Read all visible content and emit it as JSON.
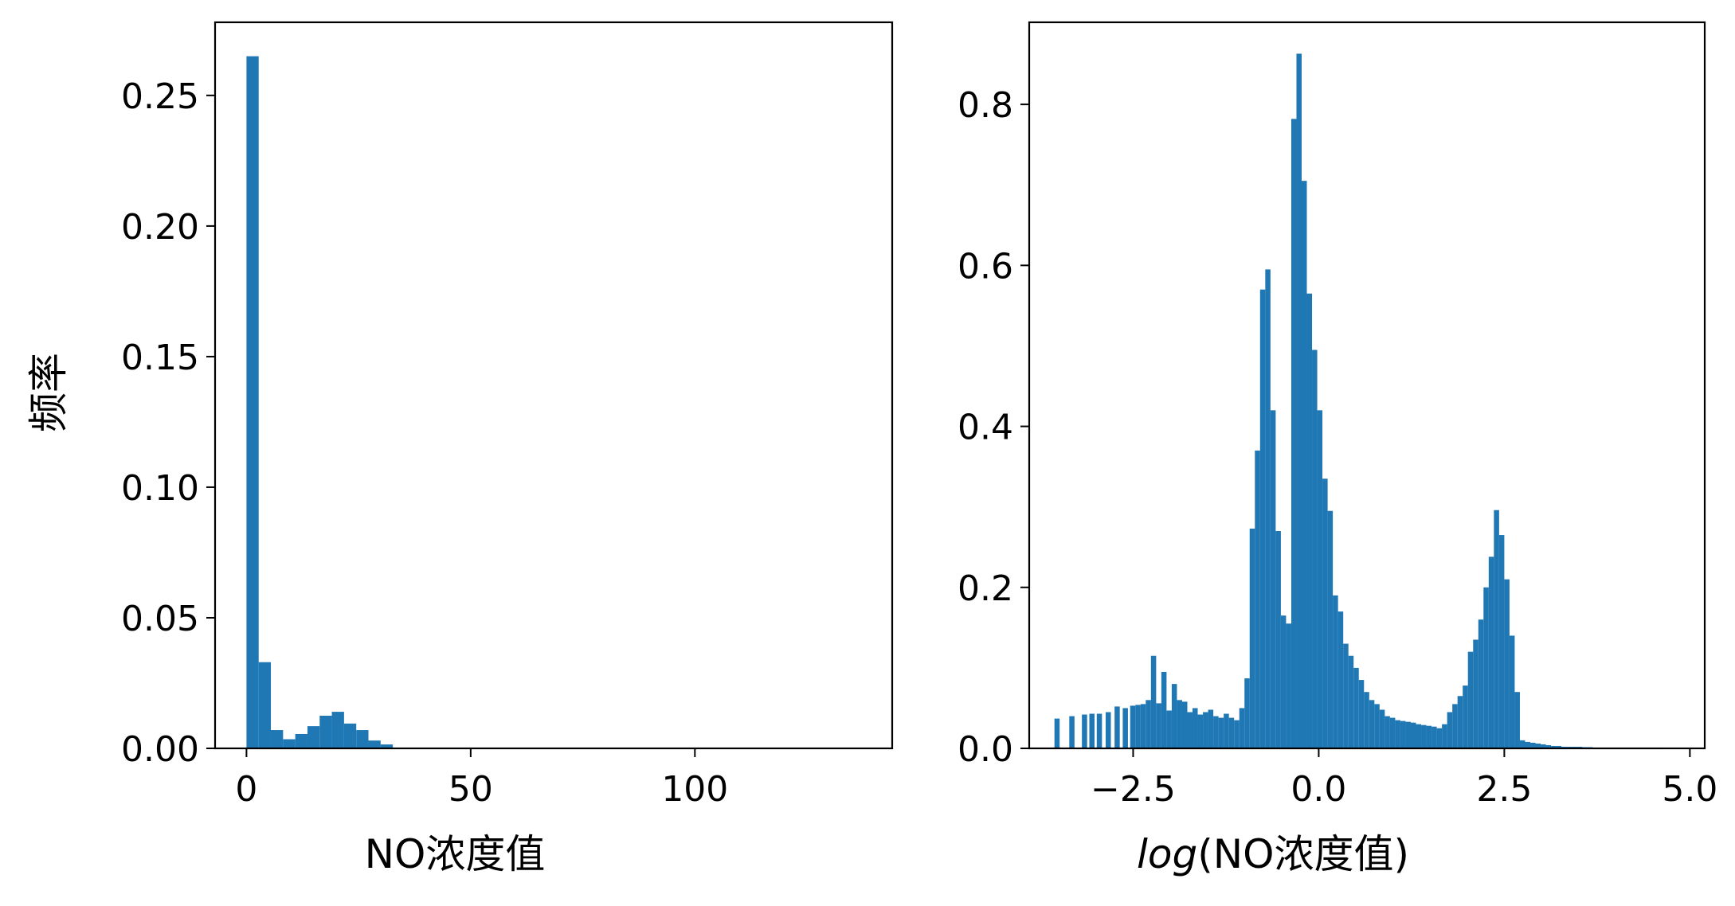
{
  "style": {
    "bar_color": "#1f77b4",
    "axes_color": "#000000",
    "background": "#ffffff"
  },
  "chart_data": [
    {
      "type": "bar",
      "title": "",
      "xlabel": "NO浓度值",
      "ylabel": "频率",
      "xlim": [
        -7,
        144
      ],
      "ylim": [
        0,
        0.278
      ],
      "xticks": [
        0,
        50,
        100
      ],
      "xtick_labels": [
        "0",
        "50",
        "100"
      ],
      "yticks": [
        0,
        0.05,
        0.1,
        0.15,
        0.2,
        0.25
      ],
      "ytick_labels": [
        "0.00",
        "0.05",
        "0.10",
        "0.15",
        "0.20",
        "0.25"
      ],
      "grid": false,
      "legend": "none",
      "bin_edges": [
        0,
        2.72,
        5.44,
        8.16,
        10.88,
        13.6,
        16.32,
        19.04,
        21.76,
        24.48,
        27.2,
        29.92,
        32.64
      ],
      "values": [
        0.265,
        0.033,
        0.007,
        0.0035,
        0.0055,
        0.0085,
        0.0125,
        0.014,
        0.0095,
        0.007,
        0.003,
        0.0015
      ]
    },
    {
      "type": "bar",
      "title": "",
      "xlabel_parts": [
        "log",
        "(NO浓度值)"
      ],
      "ylabel": "",
      "xlim": [
        -3.9,
        5.2
      ],
      "ylim": [
        0,
        0.902
      ],
      "xticks": [
        -2.5,
        0.0,
        2.5,
        5.0
      ],
      "xtick_labels": [
        "−2.5",
        "0.0",
        "2.5",
        "5.0"
      ],
      "yticks": [
        0,
        0.2,
        0.4,
        0.6,
        0.8
      ],
      "ytick_labels": [
        "0.0",
        "0.2",
        "0.4",
        "0.6",
        "0.8"
      ],
      "grid": false,
      "legend": "none",
      "bar_left": [
        -3.56,
        -3.36,
        -3.19,
        -3.09,
        -2.99,
        -2.87,
        -2.75,
        -2.64,
        -2.54,
        -2.47,
        -2.4,
        -2.33,
        -2.26,
        -2.19,
        -2.12,
        -2.05,
        -1.98,
        -1.91,
        -1.84,
        -1.77,
        -1.7,
        -1.63,
        -1.56,
        -1.49,
        -1.42,
        -1.35,
        -1.28,
        -1.21,
        -1.14,
        -1.07,
        -1.0,
        -0.93,
        -0.86,
        -0.79,
        -0.72,
        -0.65,
        -0.58,
        -0.51,
        -0.44,
        -0.37,
        -0.3,
        -0.23,
        -0.16,
        -0.09,
        -0.02,
        0.05,
        0.12,
        0.19,
        0.26,
        0.33,
        0.4,
        0.47,
        0.54,
        0.61,
        0.68,
        0.75,
        0.82,
        0.89,
        0.96,
        1.03,
        1.1,
        1.17,
        1.24,
        1.31,
        1.38,
        1.45,
        1.52,
        1.59,
        1.66,
        1.73,
        1.8,
        1.87,
        1.94,
        2.01,
        2.08,
        2.15,
        2.22,
        2.29,
        2.36,
        2.43,
        2.5,
        2.57,
        2.64,
        2.71,
        2.78,
        2.85,
        2.92,
        2.99,
        3.06,
        3.13,
        3.2,
        3.27,
        3.34,
        3.41,
        3.48,
        3.55,
        3.62,
        3.69,
        3.76,
        3.83,
        3.9,
        3.97,
        4.04,
        4.11,
        4.18,
        4.25,
        4.32,
        4.39,
        4.46,
        4.53
      ],
      "bar_width": [
        0.07,
        0.07,
        0.07,
        0.07,
        0.07,
        0.07,
        0.07,
        0.07,
        0.07,
        0.07,
        0.07,
        0.07,
        0.07,
        0.07,
        0.07,
        0.07,
        0.07,
        0.07,
        0.07,
        0.07,
        0.07,
        0.07,
        0.07,
        0.07,
        0.07,
        0.07,
        0.07,
        0.07,
        0.07,
        0.07,
        0.07,
        0.07,
        0.07,
        0.07,
        0.07,
        0.07,
        0.07,
        0.07,
        0.07,
        0.07,
        0.07,
        0.07,
        0.07,
        0.07,
        0.07,
        0.07,
        0.07,
        0.07,
        0.07,
        0.07,
        0.07,
        0.07,
        0.07,
        0.07,
        0.07,
        0.07,
        0.07,
        0.07,
        0.07,
        0.07,
        0.07,
        0.07,
        0.07,
        0.07,
        0.07,
        0.07,
        0.07,
        0.07,
        0.07,
        0.07,
        0.07,
        0.07,
        0.07,
        0.07,
        0.07,
        0.07,
        0.07,
        0.07,
        0.07,
        0.07,
        0.07,
        0.07,
        0.07,
        0.07,
        0.07,
        0.07,
        0.07,
        0.07,
        0.07,
        0.07,
        0.07,
        0.07,
        0.07,
        0.07,
        0.07,
        0.07,
        0.07,
        0.07,
        0.07,
        0.07,
        0.07,
        0.07,
        0.07,
        0.07,
        0.07,
        0.07,
        0.07,
        0.07,
        0.07,
        0.07
      ],
      "values": [
        0.037,
        0.04,
        0.042,
        0.043,
        0.043,
        0.045,
        0.052,
        0.05,
        0.053,
        0.054,
        0.055,
        0.06,
        0.115,
        0.056,
        0.095,
        0.047,
        0.08,
        0.06,
        0.058,
        0.045,
        0.05,
        0.042,
        0.045,
        0.048,
        0.04,
        0.038,
        0.043,
        0.038,
        0.035,
        0.05,
        0.087,
        0.273,
        0.37,
        0.57,
        0.595,
        0.42,
        0.27,
        0.165,
        0.155,
        0.782,
        0.863,
        0.705,
        0.565,
        0.495,
        0.42,
        0.335,
        0.295,
        0.19,
        0.17,
        0.13,
        0.115,
        0.1,
        0.085,
        0.07,
        0.06,
        0.055,
        0.048,
        0.04,
        0.038,
        0.035,
        0.034,
        0.033,
        0.032,
        0.03,
        0.029,
        0.028,
        0.027,
        0.025,
        0.03,
        0.045,
        0.055,
        0.065,
        0.078,
        0.12,
        0.135,
        0.16,
        0.2,
        0.238,
        0.296,
        0.265,
        0.21,
        0.14,
        0.07,
        0.01,
        0.008,
        0.007,
        0.006,
        0.005,
        0.004,
        0.003,
        0.003,
        0.002,
        0.002,
        0.002,
        0.002,
        0.0015,
        0.0015,
        0.001,
        0.001,
        0.001,
        0.001,
        0.001,
        0.001,
        0.001,
        0.001,
        0.001,
        0.001,
        0.001,
        0.001,
        0.001
      ]
    }
  ]
}
